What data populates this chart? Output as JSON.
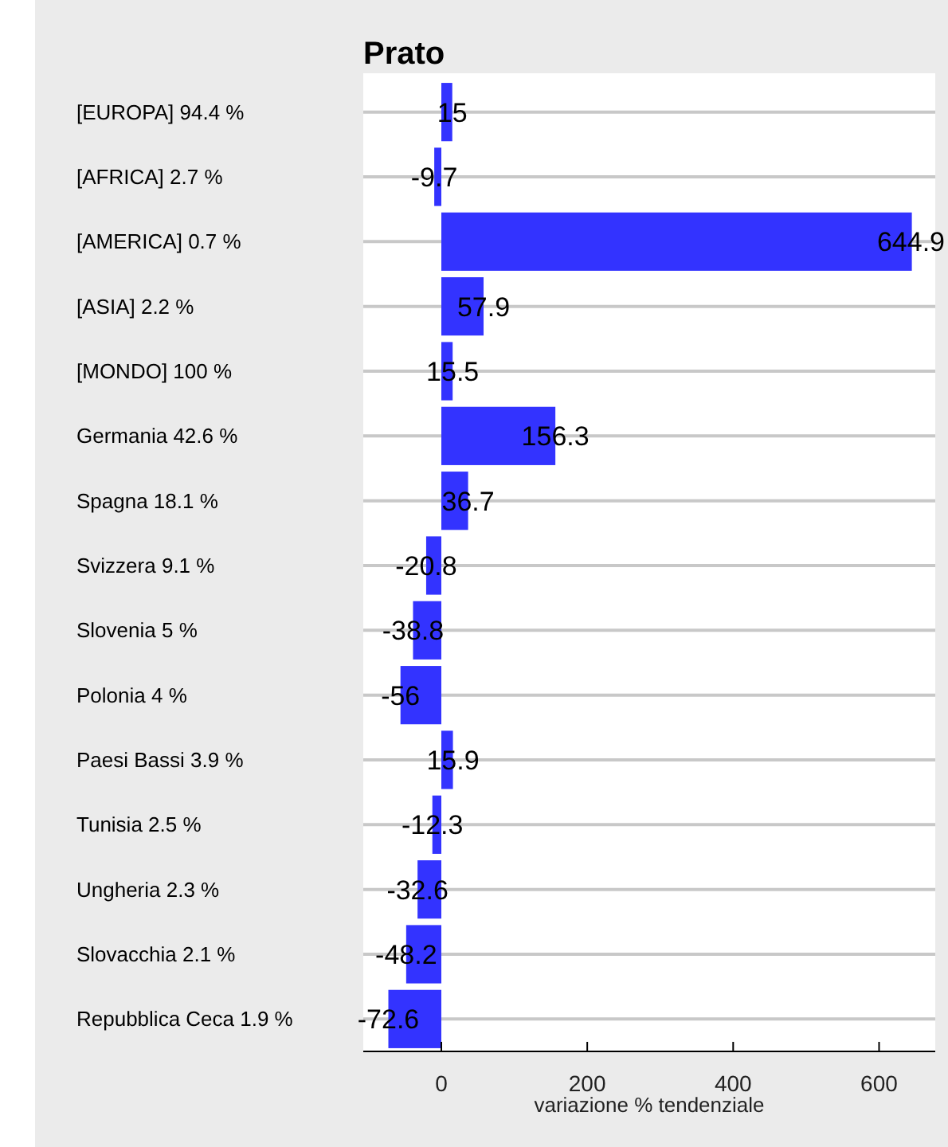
{
  "chart_data": {
    "type": "bar",
    "orientation": "horizontal",
    "title": "Prato",
    "xlabel": "variazione % tendenziale",
    "categories": [
      "[EUROPA] 94.4 %",
      "[AFRICA] 2.7 %",
      "[AMERICA] 0.7 %",
      "[ASIA] 2.2 %",
      "[MONDO] 100 %",
      "Germania 42.6 %",
      "Spagna 18.1 %",
      "Svizzera 9.1 %",
      "Slovenia 5 %",
      "Polonia 4 %",
      "Paesi Bassi 3.9 %",
      "Tunisia 2.5 %",
      "Ungheria 2.3 %",
      "Slovacchia 2.1 %",
      "Repubblica Ceca 1.9 %"
    ],
    "values": [
      15,
      -9.7,
      644.9,
      57.9,
      15.5,
      156.3,
      36.7,
      -20.8,
      -38.8,
      -56,
      15.9,
      -12.3,
      -32.6,
      -48.2,
      -72.6
    ],
    "color": "#3333ff",
    "xlim": [
      -107,
      677
    ],
    "xticks": [
      0,
      200,
      400,
      600
    ],
    "grid": "y",
    "data_labels": true
  }
}
